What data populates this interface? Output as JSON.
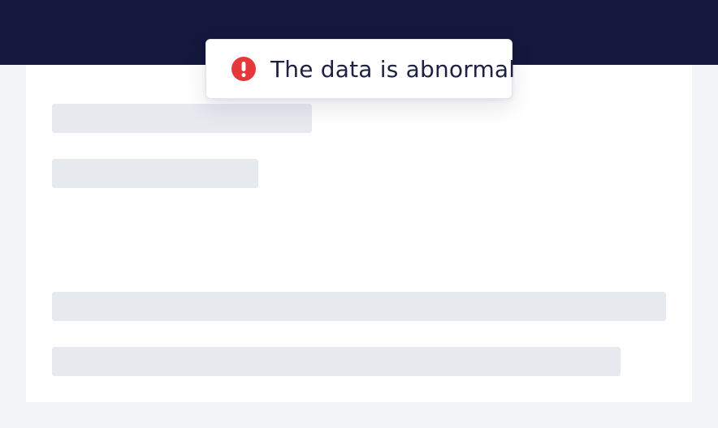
{
  "toast": {
    "type": "error",
    "icon": "exclamation-circle-icon",
    "message": "The data is abnormal",
    "icon_color": "#e5383b"
  },
  "colors": {
    "top_bar": "#15183d",
    "page_background": "#f3f4f8",
    "card_background": "#ffffff",
    "skeleton": "#e6e9ee",
    "message_text": "#1d2142"
  },
  "content": {
    "state": "loading-skeleton",
    "placeholder_count": 4
  }
}
